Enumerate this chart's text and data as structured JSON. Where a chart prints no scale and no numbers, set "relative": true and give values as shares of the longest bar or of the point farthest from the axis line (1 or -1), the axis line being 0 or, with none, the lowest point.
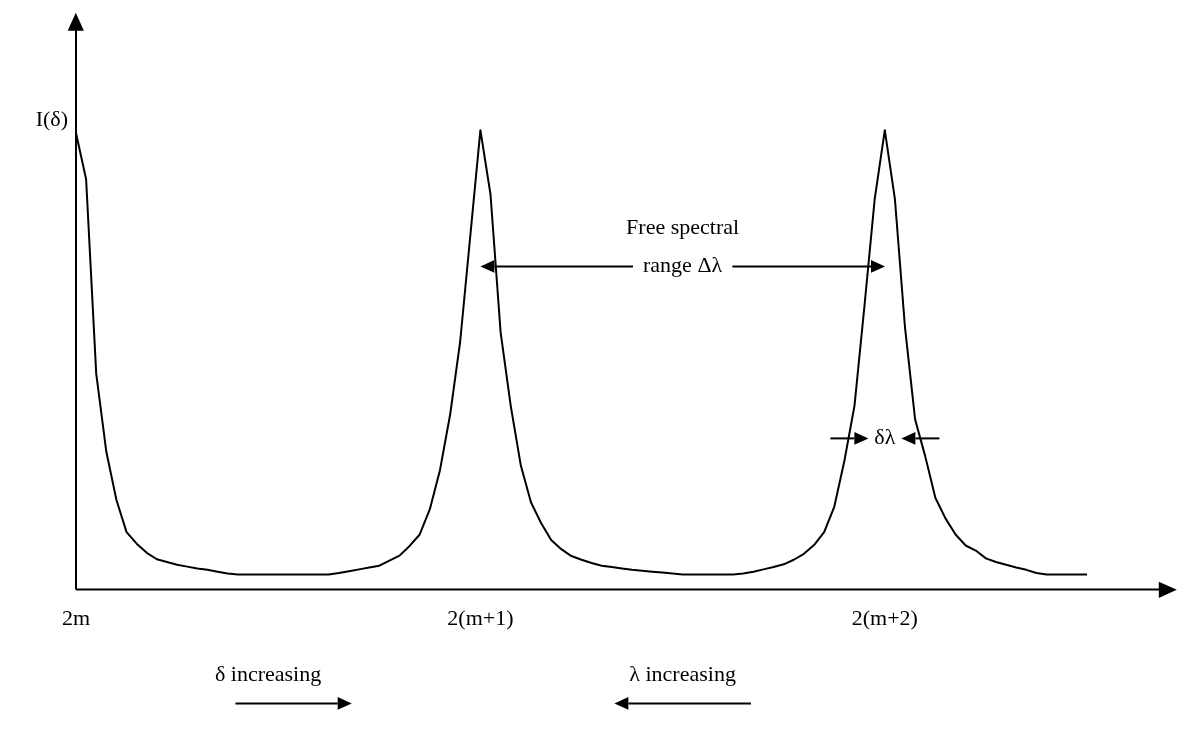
{
  "chart_data": {
    "type": "line",
    "relative": true,
    "ylabel": "I(δ)",
    "categories": [
      "2m",
      null,
      null,
      null,
      null,
      null,
      null,
      null,
      null,
      null,
      null,
      null,
      null,
      null,
      null,
      null,
      null,
      null,
      null,
      null,
      null,
      null,
      null,
      null,
      null,
      null,
      null,
      null,
      null,
      null,
      null,
      null,
      null,
      null,
      null,
      null,
      null,
      null,
      null,
      null,
      "2(m+1)",
      null,
      null,
      null,
      null,
      null,
      null,
      null,
      null,
      null,
      null,
      null,
      null,
      null,
      null,
      null,
      null,
      null,
      null,
      null,
      null,
      null,
      null,
      null,
      null,
      null,
      null,
      null,
      null,
      null,
      null,
      null,
      null,
      null,
      null,
      null,
      null,
      null,
      null,
      null,
      "2(m+2)",
      null,
      null,
      null,
      null,
      null,
      null,
      null,
      null,
      null,
      null,
      null,
      null,
      null,
      null,
      null,
      null,
      null,
      null,
      null,
      null
    ],
    "grid": false,
    "legend": false,
    "series": [
      {
        "color": "#000000",
        "values": [
          0.994,
          0.893,
          0.47,
          0.3,
          0.195,
          0.125,
          0.1,
          0.08,
          0.066,
          0.06,
          0.054,
          0.05,
          0.046,
          0.043,
          0.039,
          0.035,
          0.033,
          0.033,
          0.033,
          0.033,
          0.033,
          0.033,
          0.033,
          0.033,
          0.033,
          0.033,
          0.036,
          0.04,
          0.044,
          0.048,
          0.052,
          0.063,
          0.074,
          0.095,
          0.12,
          0.175,
          0.26,
          0.38,
          0.54,
          0.77,
          1.0,
          0.86,
          0.56,
          0.4,
          0.27,
          0.19,
          0.145,
          0.108,
          0.088,
          0.073,
          0.065,
          0.058,
          0.052,
          0.049,
          0.046,
          0.043,
          0.041,
          0.039,
          0.037,
          0.035,
          0.033,
          0.033,
          0.033,
          0.033,
          0.033,
          0.033,
          0.035,
          0.039,
          0.044,
          0.049,
          0.055,
          0.065,
          0.078,
          0.097,
          0.125,
          0.18,
          0.28,
          0.4,
          0.62,
          0.85,
          1.0,
          0.85,
          0.57,
          0.37,
          0.29,
          0.2,
          0.155,
          0.12,
          0.096,
          0.085,
          0.068,
          0.06,
          0.054,
          0.048,
          0.043,
          0.036,
          0.033,
          0.033,
          0.033,
          0.033,
          0.033
        ]
      }
    ],
    "annotations": [
      "Free spectral range Δλ",
      "δλ",
      "δ increasing",
      "λ increasing"
    ]
  }
}
